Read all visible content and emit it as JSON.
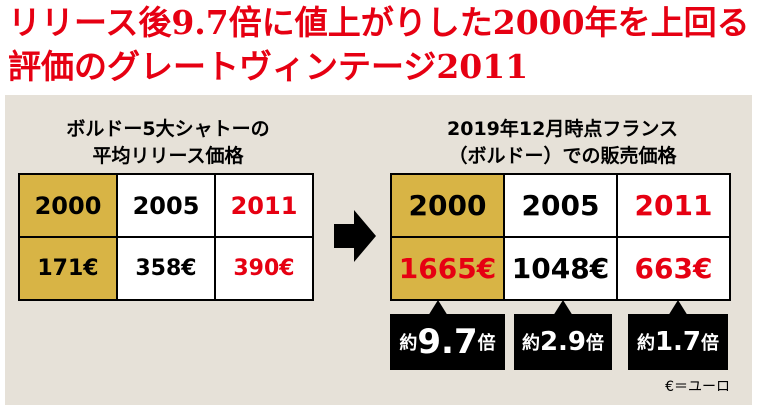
{
  "header": {
    "title": [
      "リリース後9.7倍に値上がりした2000年を上回る",
      "評価のグレートヴィンテージ2011"
    ]
  },
  "left": {
    "heading": [
      "ボルドー5大シャトーの",
      "平均リリース価格"
    ],
    "table": {
      "rows": [
        [
          "2000",
          "2005",
          "2011"
        ],
        [
          "171€",
          "358€",
          "390€"
        ]
      ]
    }
  },
  "right": {
    "heading": [
      "2019年12月時点フランス",
      "（ボルドー）での販売価格"
    ],
    "table": {
      "rows": [
        [
          "2000",
          "2005",
          "2011"
        ],
        [
          "1665€",
          "1048€",
          "663€"
        ]
      ]
    },
    "badges": [
      {
        "prefix": "約",
        "value": "9.7",
        "suffix": "倍"
      },
      {
        "prefix": "約",
        "value": "2.9",
        "suffix": "倍"
      },
      {
        "prefix": "約",
        "value": "1.7",
        "suffix": "倍"
      }
    ]
  },
  "note": "€＝ユーロ"
}
